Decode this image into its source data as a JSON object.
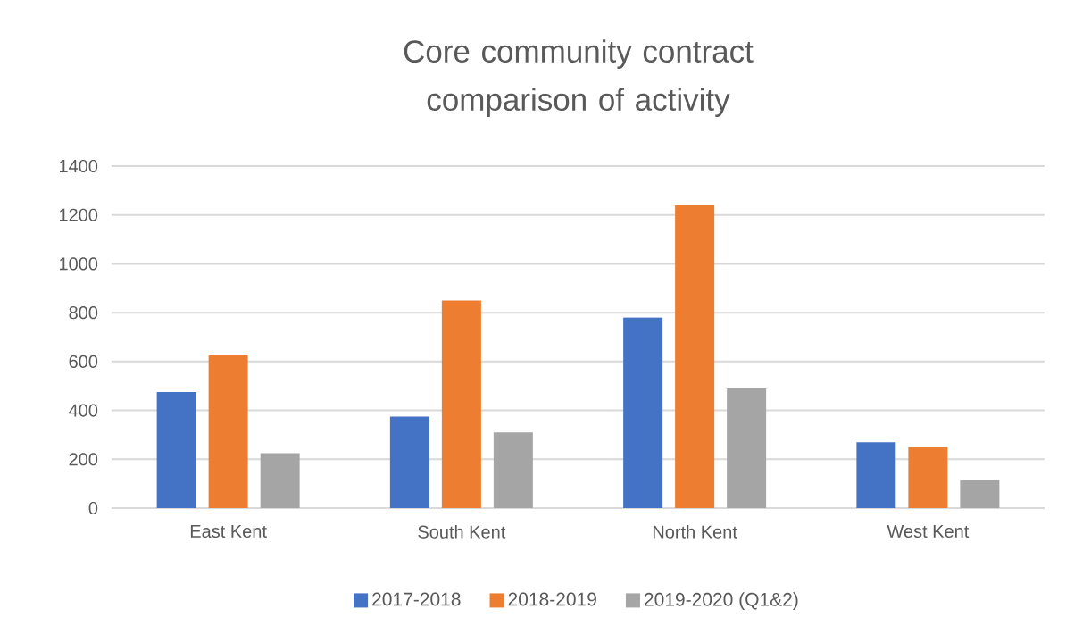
{
  "chart_data": {
    "type": "bar",
    "title": "Core community contract comparison of activity",
    "categories": [
      "East Kent",
      "South Kent",
      "North Kent",
      "West Kent"
    ],
    "series": [
      {
        "name": "2017-2018",
        "color": "#4472c4",
        "values": [
          475,
          375,
          780,
          270
        ]
      },
      {
        "name": "2018-2019",
        "color": "#ed7d31",
        "values": [
          625,
          850,
          1240,
          250
        ]
      },
      {
        "name": "2019-2020 (Q1&2)",
        "color": "#a5a5a5",
        "values": [
          225,
          310,
          490,
          115
        ]
      }
    ],
    "ylim": [
      0,
      1400
    ],
    "yticks": [
      0,
      200,
      400,
      600,
      800,
      1000,
      1200,
      1400
    ],
    "grid": "y",
    "legend": "bottom"
  }
}
